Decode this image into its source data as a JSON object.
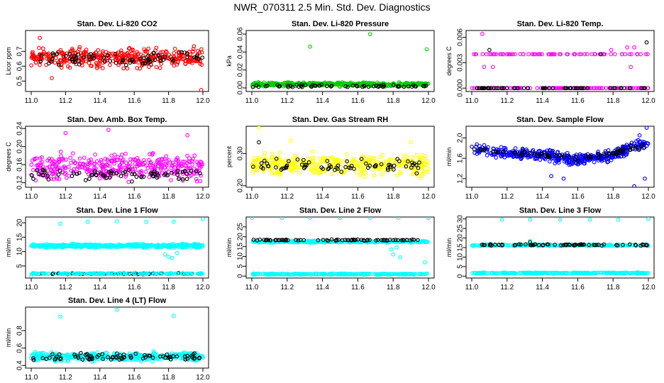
{
  "figure_title": "NWR_070311  2.5 Min. Std. Dev. Diagnostics",
  "colors": {
    "red": "#ff0000",
    "green": "#00cc00",
    "magenta": "#ff00ff",
    "yellow": "#ffff00",
    "blue": "#0000ff",
    "cyan": "#00ffff",
    "black": "#000000"
  },
  "chart_data": [
    {
      "type": "scatter",
      "title": "Stan. Dev. Li-820 CO2",
      "ylabel": "Licor ppm",
      "xlim": [
        11.0,
        12.0
      ],
      "ylim": [
        0.43,
        0.84
      ],
      "xticks": [
        "11.0",
        "11.2",
        "11.4",
        "11.6",
        "11.8",
        "12.0"
      ],
      "yticks": [
        "0.5",
        "0.6",
        "0.7"
      ],
      "series": [
        {
          "name": "main",
          "color": "red",
          "pattern": {
            "kind": "band",
            "center": 0.66,
            "spread": 0.09,
            "n": 400
          },
          "points": [
            [
              11.99,
              0.44
            ],
            [
              11.05,
              0.79
            ],
            [
              11.12,
              0.52
            ]
          ]
        },
        {
          "name": "black",
          "color": "black",
          "pattern": {
            "kind": "band",
            "center": 0.65,
            "spread": 0.06,
            "n": 70
          }
        }
      ]
    },
    {
      "type": "scatter",
      "title": "Stan. Dev. Li-820 Pressure",
      "ylabel": "kPa",
      "xlim": [
        11.0,
        12.0
      ],
      "ylim": [
        -0.004,
        0.064
      ],
      "xticks": [
        "11.0",
        "11.2",
        "11.4",
        "11.6",
        "11.8",
        "12.0"
      ],
      "yticks": [
        "0.00",
        "0.02",
        "0.04",
        "0.06"
      ],
      "series": [
        {
          "name": "main",
          "color": "green",
          "pattern": {
            "kind": "band",
            "center": 0.004,
            "spread": 0.003,
            "n": 400
          },
          "points": [
            [
              11.33,
              0.046
            ],
            [
              11.67,
              0.06
            ],
            [
              11.99,
              0.043
            ]
          ]
        },
        {
          "name": "black",
          "color": "black",
          "pattern": {
            "kind": "band",
            "center": 0.002,
            "spread": 0.002,
            "n": 60
          }
        }
      ]
    },
    {
      "type": "scatter",
      "title": "Stan. Dev. Li-820 Temp.",
      "ylabel": "degrees C",
      "xlim": [
        11.0,
        12.0
      ],
      "ylim": [
        -0.0004,
        0.0068
      ],
      "xticks": [
        "11.0",
        "11.2",
        "11.4",
        "11.6",
        "11.8",
        "12.0"
      ],
      "yticks": [
        "0.000",
        "0.003",
        "0.006"
      ],
      "series": [
        {
          "name": "main",
          "color": "magenta",
          "pattern": {
            "kind": "levels",
            "levels": [
              0.0,
              0.004
            ],
            "weights": [
              0.65,
              0.35
            ],
            "n": 200
          },
          "points": [
            [
              11.06,
              0.0064
            ],
            [
              11.07,
              0.0025
            ],
            [
              11.12,
              0.0025
            ],
            [
              11.79,
              0.0045
            ],
            [
              11.88,
              0.0048
            ],
            [
              11.92,
              0.0048
            ],
            [
              11.9,
              0.0025
            ]
          ]
        },
        {
          "name": "black",
          "color": "black",
          "pattern": {
            "kind": "levels",
            "levels": [
              0.0
            ],
            "weights": [
              1.0
            ],
            "n": 60
          },
          "points": [
            [
              11.1,
              0.0045
            ],
            [
              11.73,
              0.004
            ],
            [
              11.99,
              0.0054
            ]
          ]
        }
      ]
    },
    {
      "type": "scatter",
      "title": "Stan. Dev. Amb. Box Temp.",
      "ylabel": "degrees C",
      "xlim": [
        11.0,
        12.0
      ],
      "ylim": [
        0.11,
        0.245
      ],
      "xticks": [
        "11.0",
        "11.2",
        "11.4",
        "11.6",
        "11.8",
        "12.0"
      ],
      "yticks": [
        "0.12",
        "0.16",
        "0.20",
        "0.24"
      ],
      "series": [
        {
          "name": "main",
          "color": "magenta",
          "pattern": {
            "kind": "band",
            "center": 0.155,
            "spread": 0.04,
            "n": 380
          },
          "points": [
            [
              11.45,
              0.237
            ],
            [
              11.2,
              0.23
            ],
            [
              11.91,
              0.225
            ]
          ]
        },
        {
          "name": "black",
          "color": "black",
          "pattern": {
            "kind": "band",
            "center": 0.138,
            "spread": 0.018,
            "n": 70
          }
        }
      ]
    },
    {
      "type": "scatter",
      "title": "Stan. Dev. Gas Stream RH",
      "ylabel": "percent",
      "xlim": [
        11.0,
        12.0
      ],
      "ylim": [
        0.195,
        0.385
      ],
      "xticks": [
        "11.0",
        "11.2",
        "11.4",
        "11.6",
        "11.8",
        "12.0"
      ],
      "yticks": [
        "0.20",
        "0.30"
      ],
      "series": [
        {
          "name": "main",
          "color": "yellow",
          "pattern": {
            "kind": "band",
            "center": 0.265,
            "spread": 0.045,
            "n": 380
          },
          "points": [
            [
              11.04,
              0.38
            ],
            [
              11.9,
              0.335
            ],
            [
              11.22,
              0.34
            ]
          ]
        },
        {
          "name": "black",
          "color": "black",
          "pattern": {
            "kind": "band",
            "center": 0.262,
            "spread": 0.03,
            "n": 70
          },
          "points": [
            [
              11.04,
              0.335
            ]
          ]
        }
      ]
    },
    {
      "type": "scatter",
      "title": "Stan. Dev. Sample Flow",
      "ylabel": "ml/min",
      "xlim": [
        11.0,
        12.0
      ],
      "ylim": [
        1.03,
        2.23
      ],
      "xticks": [
        "11.0",
        "11.2",
        "11.4",
        "11.6",
        "11.8",
        "12.0"
      ],
      "yticks": [
        "1.2",
        "1.6",
        "2.0"
      ],
      "series": [
        {
          "name": "main",
          "color": "blue",
          "pattern": {
            "kind": "curve",
            "curve": [
              [
                11.0,
                1.78
              ],
              [
                11.2,
                1.7
              ],
              [
                11.4,
                1.66
              ],
              [
                11.6,
                1.55
              ],
              [
                11.8,
                1.66
              ],
              [
                11.9,
                1.82
              ],
              [
                12.0,
                1.88
              ]
            ],
            "spread": 0.16,
            "n": 420
          },
          "points": [
            [
              11.99,
              2.2
            ],
            [
              11.98,
              1.2
            ],
            [
              11.92,
              1.05
            ],
            [
              11.52,
              1.2
            ],
            [
              11.45,
              1.25
            ],
            [
              11.95,
              2.05
            ]
          ]
        },
        {
          "name": "black",
          "color": "black",
          "pattern": {
            "kind": "curve",
            "curve": [
              [
                11.0,
                1.78
              ],
              [
                11.2,
                1.72
              ],
              [
                11.4,
                1.68
              ],
              [
                11.6,
                1.58
              ],
              [
                11.8,
                1.7
              ],
              [
                12.0,
                1.88
              ]
            ],
            "spread": 0.08,
            "n": 70
          }
        }
      ]
    },
    {
      "type": "scatter",
      "title": "Stan. Dev. Line 1 Flow",
      "ylabel": "ml/min",
      "xlim": [
        11.0,
        12.0
      ],
      "ylim": [
        0.8,
        22.0
      ],
      "xticks": [
        "11.0",
        "11.2",
        "11.4",
        "11.6",
        "11.8",
        "12.0"
      ],
      "yticks": [
        "5",
        "10",
        "15",
        "20"
      ],
      "series": [
        {
          "name": "main",
          "color": "cyan",
          "pattern": {
            "kind": "band",
            "center": 12.0,
            "spread": 0.9,
            "n": 400
          },
          "points": [
            [
              11.0,
              1.5
            ],
            [
              11.17,
              19.7
            ],
            [
              11.33,
              20.3
            ],
            [
              11.5,
              20.5
            ],
            [
              11.67,
              20.3
            ],
            [
              11.83,
              20.4
            ],
            [
              12.0,
              21.3
            ],
            [
              11.8,
              8.2
            ],
            [
              11.78,
              9.0
            ],
            [
              11.82,
              7.8
            ],
            [
              11.85,
              9.5
            ]
          ]
        },
        {
          "name": "black",
          "color": "black",
          "pattern": {
            "kind": "band",
            "center": 2.3,
            "spread": 0.25,
            "n": 70
          }
        },
        {
          "name": "cyan-low",
          "color": "cyan",
          "pattern": {
            "kind": "band",
            "center": 2.3,
            "spread": 0.25,
            "n": 150
          }
        }
      ]
    },
    {
      "type": "scatter",
      "title": "Stan. Dev. Line 2 Flow",
      "ylabel": "ml/min",
      "xlim": [
        11.0,
        12.0
      ],
      "ylim": [
        -1.0,
        30.0
      ],
      "xticks": [
        "11.0",
        "11.2",
        "11.4",
        "11.6",
        "11.8",
        "12.0"
      ],
      "yticks": [
        "0",
        "5",
        "10",
        "15",
        "20",
        "25"
      ],
      "series": [
        {
          "name": "cyan-low",
          "color": "cyan",
          "pattern": {
            "kind": "band",
            "center": 1.0,
            "spread": 0.45,
            "n": 260
          }
        },
        {
          "name": "main",
          "color": "cyan",
          "pattern": {
            "kind": "band",
            "center": 17.5,
            "spread": 0.7,
            "n": 330
          },
          "points": [
            [
              11.0,
              29.5
            ],
            [
              11.17,
              29.5
            ],
            [
              11.33,
              29.6
            ],
            [
              11.5,
              29.5
            ],
            [
              11.67,
              29.6
            ],
            [
              11.83,
              29.6
            ],
            [
              12.0,
              29.5
            ],
            [
              11.8,
              11.0
            ],
            [
              11.79,
              13.5
            ],
            [
              11.82,
              14.5
            ],
            [
              11.84,
              9.5
            ],
            [
              11.98,
              7.0
            ]
          ]
        },
        {
          "name": "black",
          "color": "black",
          "pattern": {
            "kind": "band",
            "center": 18.3,
            "spread": 0.45,
            "n": 70
          }
        }
      ]
    },
    {
      "type": "scatter",
      "title": "Stan. Dev. Line 3 Flow",
      "ylabel": "ml/min",
      "xlim": [
        11.0,
        12.0
      ],
      "ylim": [
        -1.0,
        31.0
      ],
      "xticks": [
        "11.0",
        "11.2",
        "11.4",
        "11.6",
        "11.8",
        "12.0"
      ],
      "yticks": [
        "0",
        "5",
        "10",
        "15",
        "20",
        "25",
        "30"
      ],
      "series": [
        {
          "name": "cyan-low",
          "color": "cyan",
          "pattern": {
            "kind": "band",
            "center": 1.6,
            "spread": 0.45,
            "n": 260
          }
        },
        {
          "name": "main",
          "color": "cyan",
          "pattern": {
            "kind": "band",
            "center": 16.2,
            "spread": 0.6,
            "n": 260
          },
          "points": [
            [
              11.17,
              29.6
            ],
            [
              11.33,
              29.6
            ],
            [
              11.5,
              29.6
            ],
            [
              11.67,
              29.6
            ],
            [
              11.83,
              29.6
            ],
            [
              12.0,
              30.0
            ],
            [
              11.33,
              18.5
            ]
          ]
        },
        {
          "name": "black",
          "color": "black",
          "pattern": {
            "kind": "band",
            "center": 16.4,
            "spread": 0.5,
            "n": 70
          },
          "points": [
            [
              11.33,
              17.8
            ]
          ]
        }
      ]
    },
    {
      "type": "scatter",
      "title": "Stan. Dev. Line 4 (LT) Flow",
      "ylabel": "ml/min",
      "xlim": [
        11.0,
        12.0
      ],
      "ylim": [
        0.37,
        1.07
      ],
      "xticks": [
        "11.0",
        "11.2",
        "11.4",
        "11.6",
        "11.8",
        "12.0"
      ],
      "yticks": [
        "0.4",
        "0.6",
        "0.8"
      ],
      "series": [
        {
          "name": "main",
          "color": "cyan",
          "pattern": {
            "kind": "band",
            "center": 0.5,
            "spread": 0.07,
            "n": 400
          },
          "points": [
            [
              11.17,
              0.96
            ],
            [
              11.5,
              1.04
            ],
            [
              11.83,
              0.97
            ]
          ]
        },
        {
          "name": "black",
          "color": "black",
          "pattern": {
            "kind": "band",
            "center": 0.5,
            "spread": 0.06,
            "n": 80
          }
        }
      ]
    }
  ]
}
